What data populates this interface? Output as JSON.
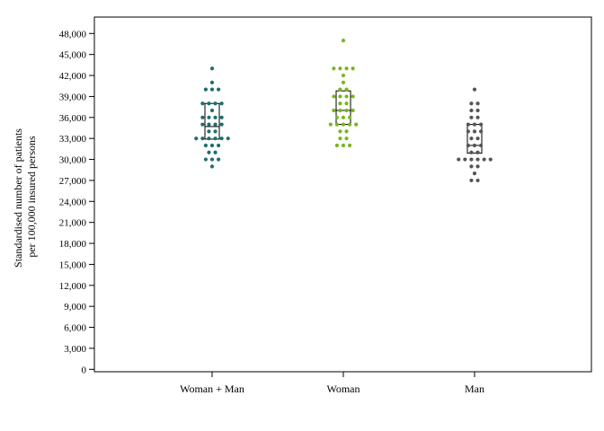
{
  "chart_data": {
    "type": "scatter",
    "ylabel_lines": [
      "Standardised number of patients",
      "per 100,000 insured persons"
    ],
    "ylim": [
      0,
      50000
    ],
    "yticks": [
      0,
      3000,
      6000,
      9000,
      12000,
      15000,
      18000,
      21000,
      24000,
      27000,
      30000,
      33000,
      36000,
      39000,
      42000,
      45000,
      48000
    ],
    "ytick_labels": [
      "0",
      "3,000",
      "6,000",
      "9,000",
      "12,000",
      "15,000",
      "18,000",
      "21,000",
      "24,000",
      "27,000",
      "30,000",
      "33,000",
      "36,000",
      "39,000",
      "42,000",
      "45,000",
      "48,000"
    ],
    "grid": false,
    "legend": "none",
    "categories": [
      "Woman + Man",
      "Woman",
      "Man"
    ],
    "series": [
      {
        "category": "Woman + Man",
        "color": "#1f6e6e",
        "box": {
          "q1": 32900,
          "median": 34700,
          "q3": 38000
        },
        "values": [
          43000,
          41000,
          40000,
          40000,
          40000,
          38000,
          38000,
          38000,
          38000,
          37000,
          36000,
          36000,
          36000,
          36000,
          35000,
          35000,
          35000,
          35000,
          34000,
          34000,
          33000,
          33000,
          33000,
          33000,
          33000,
          33000,
          32000,
          32000,
          32000,
          31000,
          31000,
          30000,
          30000,
          30000,
          29000
        ]
      },
      {
        "category": "Woman",
        "color": "#7ab51d",
        "box": {
          "q1": 35000,
          "median": 37000,
          "q3": 39800
        },
        "values": [
          47000,
          43000,
          43000,
          43000,
          43000,
          42000,
          41000,
          40000,
          40000,
          39000,
          39000,
          39000,
          39000,
          38000,
          38000,
          37000,
          37000,
          37000,
          37000,
          36000,
          36000,
          36000,
          35000,
          35000,
          35000,
          35000,
          35000,
          34000,
          34000,
          33000,
          33000,
          32000,
          32000,
          32000
        ]
      },
      {
        "category": "Man",
        "color": "#555555",
        "box": {
          "q1": 30900,
          "median": 32000,
          "q3": 35000
        },
        "values": [
          40000,
          38000,
          38000,
          37000,
          37000,
          36000,
          36000,
          35000,
          35000,
          35000,
          34000,
          34000,
          34000,
          33000,
          33000,
          32000,
          32000,
          32000,
          31000,
          31000,
          30000,
          30000,
          30000,
          30000,
          30000,
          30000,
          29000,
          29000,
          28000,
          27000,
          27000
        ]
      }
    ]
  }
}
